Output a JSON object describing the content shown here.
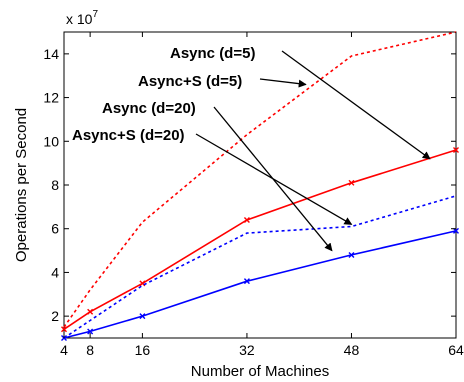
{
  "chart_data": {
    "type": "line",
    "title": "",
    "xlabel": "Number of Machines",
    "ylabel": "Operations per Second",
    "y_multiplier_label": "x 10",
    "y_multiplier_exponent": "7",
    "x_ticks": [
      4,
      8,
      16,
      32,
      48,
      64
    ],
    "y_ticks": [
      2,
      4,
      6,
      8,
      10,
      12,
      14
    ],
    "xlim": [
      4,
      64
    ],
    "ylim": [
      1,
      15
    ],
    "grid": false,
    "legend": "none",
    "series": [
      {
        "name": "Async+S (d=5)",
        "color": "#ff0000",
        "style": "dotted",
        "marker": "none",
        "x": [
          4,
          8,
          16,
          32,
          48,
          64
        ],
        "y": [
          1.5,
          3.2,
          6.3,
          10.3,
          13.9,
          15.0
        ]
      },
      {
        "name": "Async (d=5)",
        "color": "#ff0000",
        "style": "solid",
        "marker": "x",
        "x": [
          4,
          8,
          16,
          32,
          48,
          64
        ],
        "y": [
          1.4,
          2.2,
          3.5,
          6.4,
          8.1,
          9.6
        ]
      },
      {
        "name": "Async+S (d=20)",
        "color": "#0000ff",
        "style": "dotted",
        "marker": "none",
        "x": [
          4,
          8,
          16,
          32,
          48,
          64
        ],
        "y": [
          1.0,
          1.8,
          3.4,
          5.8,
          6.1,
          7.5
        ]
      },
      {
        "name": "Async (d=20)",
        "color": "#0000ff",
        "style": "solid",
        "marker": "x",
        "x": [
          4,
          8,
          16,
          32,
          48,
          64
        ],
        "y": [
          1.0,
          1.3,
          2.0,
          3.6,
          4.8,
          5.9
        ]
      }
    ],
    "annotations": [
      {
        "text": "Async (d=5)",
        "target_series": "Async (d=5)",
        "target_x": 60,
        "target_y": 9.2
      },
      {
        "text": "Async+S (d=5)",
        "target_series": "Async+S (d=5)",
        "target_x": 41,
        "target_y": 12.6
      },
      {
        "text": "Async (d=20)",
        "target_series": "Async (d=20)",
        "target_x": 45,
        "target_y": 5.0
      },
      {
        "text": "Async+S (d=20)",
        "target_series": "Async+S (d=20)",
        "target_x": 48,
        "target_y": 6.2
      }
    ]
  }
}
